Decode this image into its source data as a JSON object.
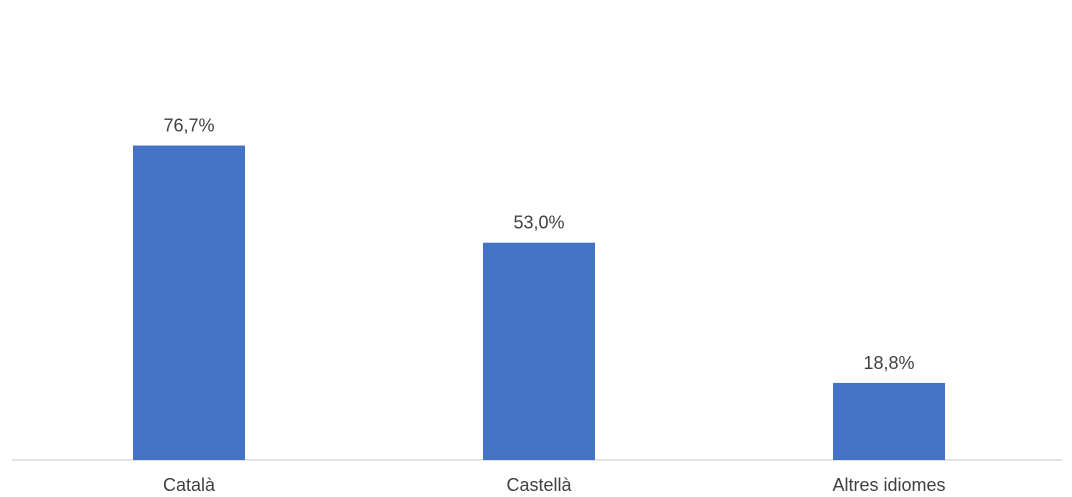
{
  "chart_data": {
    "type": "bar",
    "categories": [
      "Català",
      "Castellà",
      "Altres idiomes"
    ],
    "values": [
      76.7,
      53.0,
      18.8
    ],
    "value_labels": [
      "76,7%",
      "53,0%",
      "18,8%"
    ],
    "unit": "%",
    "title": "",
    "xlabel": "",
    "ylabel": "",
    "ylim": [
      0,
      100
    ],
    "grid": false,
    "legend": "none",
    "colors": {
      "bar": "#4472C4",
      "axis": "#D9D9D9",
      "text": "#404040"
    }
  }
}
